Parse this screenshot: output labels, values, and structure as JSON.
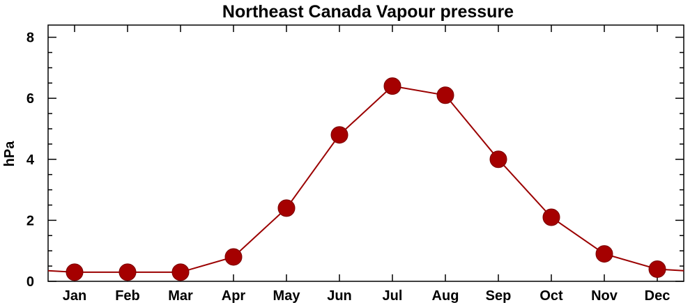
{
  "chart_data": {
    "type": "line",
    "title": "Northeast Canada Vapour pressure",
    "xlabel": "",
    "ylabel": "hPa",
    "categories": [
      "Jan",
      "Feb",
      "Mar",
      "Apr",
      "May",
      "Jun",
      "Jul",
      "Aug",
      "Sep",
      "Oct",
      "Nov",
      "Dec"
    ],
    "series": [
      {
        "values": [
          0.3,
          0.3,
          0.3,
          0.8,
          2.4,
          4.8,
          6.4,
          6.1,
          4.0,
          2.1,
          0.9,
          0.4
        ]
      }
    ],
    "y_ticks": [
      "0",
      "2",
      "4",
      "6",
      "8"
    ],
    "ylim": [
      0,
      8.4
    ],
    "line_wraps_across_year": true,
    "grid": false,
    "legend": "none",
    "colors": {
      "series": "#a50000",
      "line": "#9b0000",
      "axis": "#000000"
    }
  }
}
